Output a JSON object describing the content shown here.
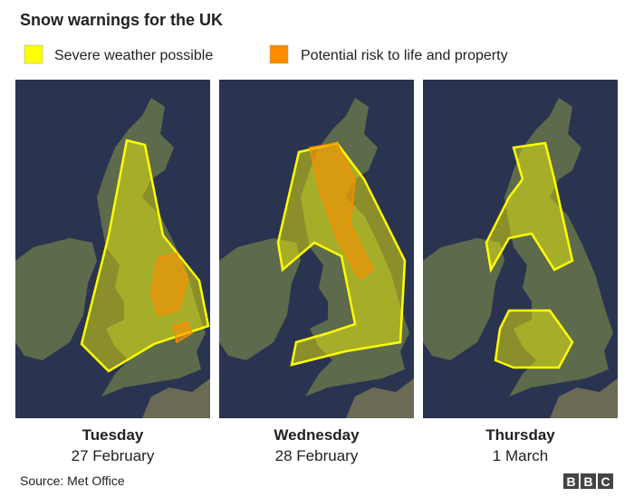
{
  "title": "Snow warnings for the UK",
  "legend": [
    {
      "label": "Severe weather possible",
      "color": "#ffff00"
    },
    {
      "label": "Potential risk to life and property",
      "color": "#ff8c00"
    }
  ],
  "panels": [
    {
      "day": "Tuesday",
      "date": "27 February"
    },
    {
      "day": "Wednesday",
      "date": "28 February"
    },
    {
      "day": "Thursday",
      "date": "1 March"
    }
  ],
  "source": "Source: Met Office",
  "logo": [
    "B",
    "B",
    "C"
  ]
}
